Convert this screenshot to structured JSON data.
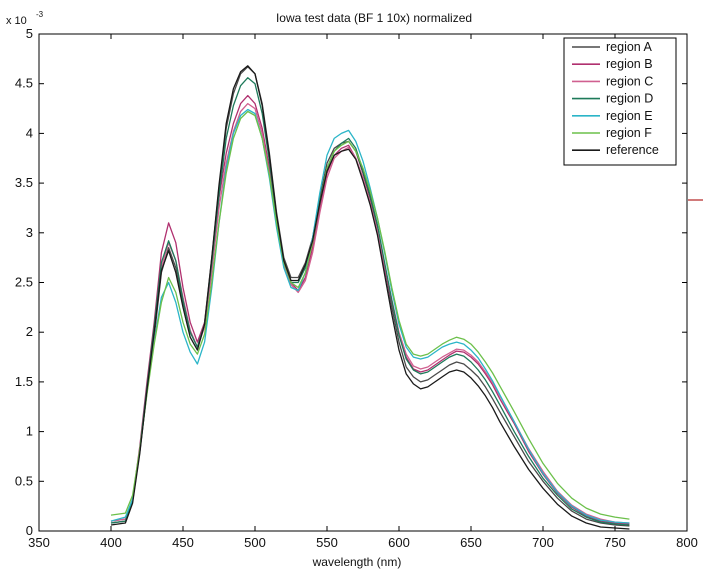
{
  "chart_data": {
    "type": "line",
    "title": "Iowa test data (BF 1 10x) normalized",
    "xlabel": "wavelength (nm)",
    "ylabel": "",
    "y_multiplier_label": "x 10",
    "y_multiplier_exponent": "-3",
    "xlim": [
      350,
      800
    ],
    "ylim": [
      0,
      5
    ],
    "x_ticks": [
      350,
      400,
      450,
      500,
      550,
      600,
      650,
      700,
      750,
      800
    ],
    "y_ticks": [
      0,
      0.5,
      1,
      1.5,
      2,
      2.5,
      3,
      3.5,
      4,
      4.5,
      5
    ],
    "y_tick_labels": [
      "0",
      "0.5",
      "1",
      "1.5",
      "2",
      "2.5",
      "3",
      "3.5",
      "4",
      "4.5",
      "5"
    ],
    "grid": false,
    "legend_position": "top-right",
    "x": [
      400,
      410,
      415,
      420,
      425,
      430,
      435,
      440,
      445,
      450,
      455,
      460,
      465,
      470,
      475,
      480,
      485,
      490,
      495,
      500,
      505,
      510,
      515,
      520,
      525,
      530,
      535,
      540,
      545,
      550,
      555,
      560,
      565,
      570,
      575,
      580,
      585,
      590,
      595,
      600,
      605,
      610,
      615,
      620,
      625,
      630,
      635,
      640,
      645,
      650,
      655,
      660,
      665,
      670,
      680,
      690,
      700,
      710,
      720,
      730,
      740,
      750,
      760
    ],
    "series": [
      {
        "name": "region A",
        "color": "#4a4a4a",
        "values": [
          0.08,
          0.1,
          0.3,
          0.8,
          1.4,
          1.95,
          2.6,
          2.85,
          2.65,
          2.3,
          2.0,
          1.85,
          2.1,
          2.75,
          3.45,
          4.05,
          4.4,
          4.6,
          4.67,
          4.6,
          4.3,
          3.8,
          3.2,
          2.75,
          2.55,
          2.55,
          2.7,
          2.95,
          3.35,
          3.7,
          3.85,
          3.9,
          3.92,
          3.82,
          3.6,
          3.35,
          3.05,
          2.65,
          2.25,
          1.9,
          1.65,
          1.55,
          1.5,
          1.52,
          1.57,
          1.62,
          1.67,
          1.7,
          1.68,
          1.62,
          1.55,
          1.45,
          1.33,
          1.2,
          0.95,
          0.7,
          0.5,
          0.33,
          0.2,
          0.12,
          0.08,
          0.06,
          0.05
        ]
      },
      {
        "name": "region B",
        "color": "#b0306f",
        "values": [
          0.1,
          0.12,
          0.32,
          0.85,
          1.5,
          2.1,
          2.8,
          3.1,
          2.9,
          2.45,
          2.1,
          1.9,
          2.1,
          2.7,
          3.35,
          3.8,
          4.1,
          4.3,
          4.38,
          4.3,
          4.05,
          3.65,
          3.1,
          2.7,
          2.5,
          2.42,
          2.55,
          2.85,
          3.25,
          3.6,
          3.78,
          3.85,
          3.88,
          3.75,
          3.55,
          3.3,
          3.0,
          2.65,
          2.3,
          1.98,
          1.75,
          1.63,
          1.6,
          1.62,
          1.67,
          1.72,
          1.77,
          1.81,
          1.8,
          1.75,
          1.68,
          1.58,
          1.47,
          1.33,
          1.08,
          0.8,
          0.57,
          0.38,
          0.24,
          0.15,
          0.1,
          0.08,
          0.07
        ]
      },
      {
        "name": "region C",
        "color": "#d06090",
        "values": [
          0.1,
          0.12,
          0.3,
          0.8,
          1.42,
          2.0,
          2.65,
          2.9,
          2.72,
          2.35,
          2.02,
          1.85,
          2.05,
          2.6,
          3.25,
          3.7,
          4.02,
          4.22,
          4.3,
          4.25,
          4.0,
          3.6,
          3.08,
          2.68,
          2.48,
          2.4,
          2.52,
          2.8,
          3.2,
          3.55,
          3.75,
          3.82,
          3.86,
          3.75,
          3.55,
          3.3,
          3.02,
          2.68,
          2.33,
          2.0,
          1.78,
          1.66,
          1.63,
          1.65,
          1.7,
          1.75,
          1.79,
          1.83,
          1.82,
          1.77,
          1.7,
          1.6,
          1.49,
          1.36,
          1.1,
          0.83,
          0.6,
          0.4,
          0.26,
          0.17,
          0.12,
          0.09,
          0.08
        ]
      },
      {
        "name": "region D",
        "color": "#1e7a5a",
        "values": [
          0.08,
          0.1,
          0.3,
          0.82,
          1.45,
          2.05,
          2.7,
          2.92,
          2.72,
          2.32,
          2.0,
          1.85,
          2.08,
          2.7,
          3.38,
          3.95,
          4.28,
          4.48,
          4.56,
          4.5,
          4.2,
          3.72,
          3.15,
          2.72,
          2.5,
          2.5,
          2.65,
          2.92,
          3.3,
          3.65,
          3.82,
          3.9,
          3.95,
          3.85,
          3.63,
          3.38,
          3.08,
          2.7,
          2.32,
          1.97,
          1.73,
          1.62,
          1.58,
          1.6,
          1.65,
          1.7,
          1.75,
          1.78,
          1.76,
          1.7,
          1.62,
          1.52,
          1.4,
          1.27,
          1.0,
          0.75,
          0.53,
          0.36,
          0.22,
          0.14,
          0.09,
          0.07,
          0.06
        ]
      },
      {
        "name": "region E",
        "color": "#2bb5c8",
        "values": [
          0.1,
          0.14,
          0.32,
          0.8,
          1.4,
          1.9,
          2.35,
          2.5,
          2.3,
          2.0,
          1.8,
          1.68,
          1.9,
          2.45,
          3.1,
          3.65,
          4.0,
          4.18,
          4.24,
          4.2,
          3.95,
          3.55,
          3.05,
          2.65,
          2.45,
          2.42,
          2.6,
          2.95,
          3.4,
          3.78,
          3.95,
          4.0,
          4.03,
          3.92,
          3.72,
          3.45,
          3.15,
          2.8,
          2.42,
          2.08,
          1.85,
          1.75,
          1.73,
          1.75,
          1.8,
          1.85,
          1.88,
          1.9,
          1.88,
          1.82,
          1.74,
          1.63,
          1.51,
          1.37,
          1.1,
          0.82,
          0.58,
          0.39,
          0.25,
          0.16,
          0.11,
          0.09,
          0.08
        ]
      },
      {
        "name": "region F",
        "color": "#6cc04a",
        "values": [
          0.16,
          0.18,
          0.36,
          0.82,
          1.38,
          1.88,
          2.3,
          2.55,
          2.4,
          2.1,
          1.88,
          1.78,
          1.98,
          2.5,
          3.1,
          3.6,
          3.95,
          4.15,
          4.22,
          4.18,
          3.95,
          3.58,
          3.1,
          2.7,
          2.5,
          2.45,
          2.6,
          2.9,
          3.3,
          3.65,
          3.82,
          3.88,
          3.92,
          3.82,
          3.65,
          3.42,
          3.15,
          2.82,
          2.45,
          2.12,
          1.88,
          1.78,
          1.76,
          1.78,
          1.83,
          1.88,
          1.92,
          1.95,
          1.93,
          1.88,
          1.8,
          1.7,
          1.59,
          1.46,
          1.2,
          0.93,
          0.68,
          0.48,
          0.33,
          0.23,
          0.17,
          0.14,
          0.12
        ]
      },
      {
        "name": "reference",
        "color": "#1a1a1a",
        "values": [
          0.06,
          0.08,
          0.28,
          0.78,
          1.42,
          2.0,
          2.62,
          2.82,
          2.6,
          2.25,
          1.95,
          1.82,
          2.08,
          2.75,
          3.48,
          4.1,
          4.45,
          4.62,
          4.68,
          4.6,
          4.28,
          3.78,
          3.18,
          2.72,
          2.52,
          2.52,
          2.68,
          2.92,
          3.3,
          3.62,
          3.78,
          3.82,
          3.84,
          3.74,
          3.52,
          3.28,
          2.98,
          2.58,
          2.18,
          1.82,
          1.58,
          1.48,
          1.43,
          1.45,
          1.5,
          1.55,
          1.6,
          1.62,
          1.6,
          1.54,
          1.46,
          1.36,
          1.24,
          1.1,
          0.85,
          0.62,
          0.43,
          0.27,
          0.15,
          0.08,
          0.04,
          0.03,
          0.02
        ]
      }
    ]
  }
}
